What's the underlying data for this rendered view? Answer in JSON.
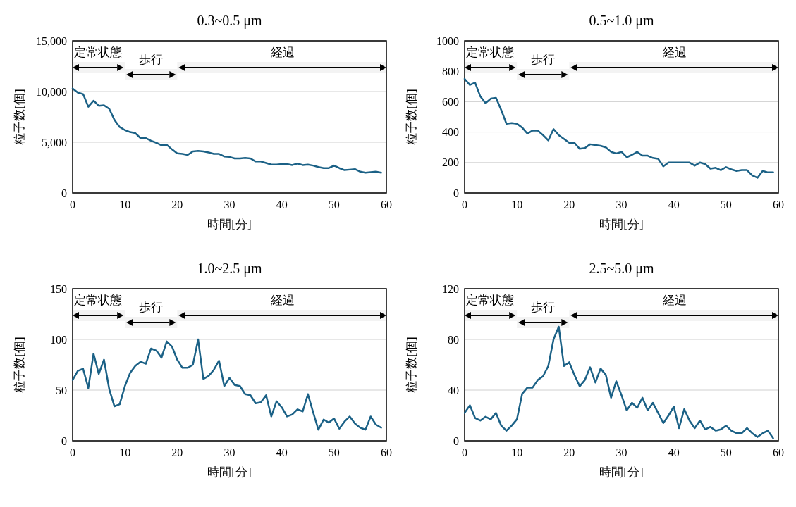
{
  "chart_data": [
    {
      "type": "line",
      "title": "0.3~0.5 μm",
      "xlabel": "時間[分]",
      "ylabel": "粒子数[個]",
      "xlim": [
        0,
        60
      ],
      "xticks": [
        0,
        10,
        20,
        30,
        40,
        50,
        60
      ],
      "ylim": [
        0,
        15000
      ],
      "yticks": [
        0,
        {
          "value": 5000,
          "label": "5,000"
        },
        {
          "value": 10000,
          "label": "10,000"
        },
        {
          "value": 15000,
          "label": "15,000"
        }
      ],
      "grid": "y",
      "marker": "none",
      "line_style": "solid",
      "x": [
        0,
        1,
        2,
        3,
        4,
        5,
        6,
        7,
        8,
        9,
        10,
        11,
        12,
        13,
        14,
        15,
        16,
        17,
        18,
        19,
        20,
        21,
        22,
        23,
        24,
        25,
        26,
        27,
        28,
        29,
        30,
        31,
        32,
        33,
        34,
        35,
        36,
        37,
        38,
        39,
        40,
        41,
        42,
        43,
        44,
        45,
        46,
        47,
        48,
        49,
        50,
        51,
        52,
        53,
        54,
        55,
        56,
        57,
        58,
        59
      ],
      "series": [
        {
          "color": "#1b6186",
          "values": [
            10300,
            9900,
            9750,
            8500,
            9100,
            8600,
            8650,
            8300,
            7200,
            6500,
            6200,
            6000,
            5900,
            5400,
            5400,
            5150,
            4950,
            4700,
            4750,
            4300,
            3900,
            3850,
            3750,
            4100,
            4150,
            4100,
            4000,
            3850,
            3850,
            3600,
            3550,
            3400,
            3400,
            3450,
            3400,
            3100,
            3100,
            2950,
            2800,
            2800,
            2850,
            2850,
            2750,
            2900,
            2750,
            2800,
            2700,
            2550,
            2450,
            2450,
            2700,
            2450,
            2250,
            2300,
            2350,
            2100,
            2000,
            2050,
            2100,
            2000
          ]
        }
      ],
      "bands": [
        {
          "axis": "x",
          "from": 0,
          "to": 10,
          "label": "定常状態"
        },
        {
          "axis": "x",
          "from": 10,
          "to": 20,
          "label": "歩行"
        },
        {
          "axis": "x",
          "from": 20,
          "to": 60,
          "label": "経過"
        }
      ]
    },
    {
      "type": "line",
      "title": "0.5~1.0 μm",
      "xlabel": "時間[分]",
      "ylabel": "粒子数[個]",
      "xlim": [
        0,
        60
      ],
      "xticks": [
        0,
        10,
        20,
        30,
        40,
        50,
        60
      ],
      "ylim": [
        0,
        1000
      ],
      "yticks": [
        0,
        200,
        400,
        600,
        800,
        1000
      ],
      "grid": "y",
      "marker": "none",
      "line_style": "solid",
      "x": [
        0,
        1,
        2,
        3,
        4,
        5,
        6,
        7,
        8,
        9,
        10,
        11,
        12,
        13,
        14,
        15,
        16,
        17,
        18,
        19,
        20,
        21,
        22,
        23,
        24,
        25,
        26,
        27,
        28,
        29,
        30,
        31,
        32,
        33,
        34,
        35,
        36,
        37,
        38,
        39,
        40,
        41,
        42,
        43,
        44,
        45,
        46,
        47,
        48,
        49,
        50,
        51,
        52,
        53,
        54,
        55,
        56,
        57,
        58,
        59
      ],
      "series": [
        {
          "color": "#1b6186",
          "values": [
            750,
            710,
            725,
            635,
            590,
            620,
            625,
            545,
            455,
            460,
            455,
            430,
            390,
            410,
            410,
            380,
            345,
            420,
            380,
            355,
            330,
            330,
            290,
            295,
            320,
            315,
            310,
            300,
            270,
            260,
            270,
            235,
            250,
            270,
            245,
            245,
            230,
            225,
            175,
            200,
            200,
            200,
            200,
            200,
            180,
            200,
            190,
            160,
            165,
            150,
            170,
            155,
            145,
            150,
            150,
            115,
            100,
            145,
            135,
            135
          ]
        }
      ],
      "bands": [
        {
          "axis": "x",
          "from": 0,
          "to": 10,
          "label": "定常状態"
        },
        {
          "axis": "x",
          "from": 10,
          "to": 20,
          "label": "歩行"
        },
        {
          "axis": "x",
          "from": 20,
          "to": 60,
          "label": "経過"
        }
      ]
    },
    {
      "type": "line",
      "title": "1.0~2.5 μm",
      "xlabel": "時間[分]",
      "ylabel": "粒子数[個]",
      "xlim": [
        0,
        60
      ],
      "xticks": [
        0,
        10,
        20,
        30,
        40,
        50,
        60
      ],
      "ylim": [
        0,
        150
      ],
      "yticks": [
        0,
        50,
        100,
        150
      ],
      "grid": "y",
      "marker": "none",
      "line_style": "solid",
      "x": [
        0,
        1,
        2,
        3,
        4,
        5,
        6,
        7,
        8,
        9,
        10,
        11,
        12,
        13,
        14,
        15,
        16,
        17,
        18,
        19,
        20,
        21,
        22,
        23,
        24,
        25,
        26,
        27,
        28,
        29,
        30,
        31,
        32,
        33,
        34,
        35,
        36,
        37,
        38,
        39,
        40,
        41,
        42,
        43,
        44,
        45,
        46,
        47,
        48,
        49,
        50,
        51,
        52,
        53,
        54,
        55,
        56,
        57,
        58,
        59
      ],
      "series": [
        {
          "color": "#1b6186",
          "values": [
            60,
            69,
            71,
            52,
            86,
            66,
            80,
            51,
            34,
            36,
            54,
            67,
            74,
            78,
            76,
            91,
            89,
            82,
            98,
            93,
            80,
            72,
            72,
            75,
            100,
            61,
            64,
            70,
            79,
            54,
            62,
            55,
            54,
            46,
            45,
            37,
            38,
            45,
            24,
            39,
            33,
            24,
            26,
            31,
            29,
            46,
            28,
            11,
            21,
            18,
            22,
            12,
            19,
            24,
            17,
            13,
            11,
            24,
            16,
            13
          ]
        }
      ],
      "bands": [
        {
          "axis": "x",
          "from": 0,
          "to": 10,
          "label": "定常状態"
        },
        {
          "axis": "x",
          "from": 10,
          "to": 20,
          "label": "歩行"
        },
        {
          "axis": "x",
          "from": 20,
          "to": 60,
          "label": "経過"
        }
      ]
    },
    {
      "type": "line",
      "title": "2.5~5.0 μm",
      "xlabel": "時間[分]",
      "ylabel": "粒子数[個]",
      "xlim": [
        0,
        60
      ],
      "xticks": [
        0,
        10,
        20,
        30,
        40,
        50,
        60
      ],
      "ylim": [
        0,
        120
      ],
      "yticks": [
        0,
        40,
        80,
        120
      ],
      "grid": "y",
      "marker": "none",
      "line_style": "solid",
      "x": [
        0,
        1,
        2,
        3,
        4,
        5,
        6,
        7,
        8,
        9,
        10,
        11,
        12,
        13,
        14,
        15,
        16,
        17,
        18,
        19,
        20,
        21,
        22,
        23,
        24,
        25,
        26,
        27,
        28,
        29,
        30,
        31,
        32,
        33,
        34,
        35,
        36,
        37,
        38,
        39,
        40,
        41,
        42,
        43,
        44,
        45,
        46,
        47,
        48,
        49,
        50,
        51,
        52,
        53,
        54,
        55,
        56,
        57,
        58,
        59
      ],
      "series": [
        {
          "color": "#1b6186",
          "values": [
            22,
            28,
            18,
            16,
            19,
            17,
            22,
            12,
            8,
            12,
            17,
            37,
            42,
            42,
            48,
            51,
            59,
            80,
            90,
            59,
            62,
            52,
            43,
            48,
            58,
            46,
            57,
            52,
            34,
            47,
            36,
            24,
            30,
            26,
            34,
            24,
            30,
            22,
            14,
            20,
            27,
            10,
            25,
            16,
            10,
            16,
            9,
            11,
            8,
            9,
            12,
            8,
            6,
            6,
            10,
            6,
            3,
            6,
            8,
            2
          ]
        }
      ],
      "bands": [
        {
          "axis": "x",
          "from": 0,
          "to": 10,
          "label": "定常状態"
        },
        {
          "axis": "x",
          "from": 10,
          "to": 20,
          "label": "歩行"
        },
        {
          "axis": "x",
          "from": 20,
          "to": 60,
          "label": "経過"
        }
      ]
    }
  ]
}
